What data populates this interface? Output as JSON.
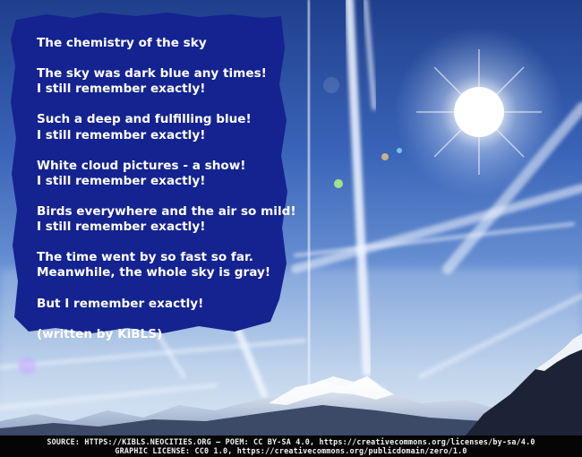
{
  "poem": {
    "title": "The chemistry of the sky",
    "stanzas": [
      "The sky was dark blue any times!\nI still remember exactly!",
      "Such a deep and fulfilling blue!\nI still remember exactly!",
      "White cloud pictures - a show!\nI still remember exactly!",
      "Birds everywhere and the air so mild!\nI still remember exactly!",
      "The time went by so fast so far.\nMeanwhile, the whole sky is gray!",
      "But I remember exactly!",
      "(written by KiBLS)"
    ]
  },
  "footer": {
    "line1": "SOURCE: HTTPS://KIBLS.NEOCITIES.ORG — POEM: CC BY-SA 4.0, https://creativecommons.org/licenses/by-sa/4.0",
    "line2": "GRAPHIC LICENSE: CC0 1.0, https://creativecommons.org/publicdomain/zero/1.0"
  },
  "colors": {
    "panel": "#14238f",
    "text": "#ffffff",
    "footer_bg": "#050505"
  }
}
